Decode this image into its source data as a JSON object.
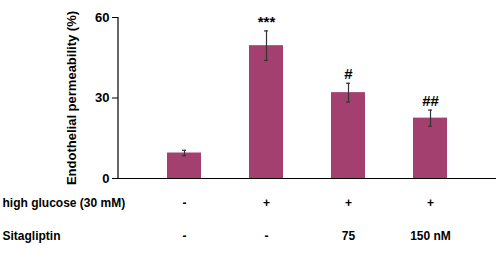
{
  "chart_data": {
    "type": "bar",
    "y_label": "Endothelial permeability (%)",
    "categories": [
      null,
      null,
      null,
      null
    ],
    "values": [
      9.5,
      49.5,
      32,
      22.5
    ],
    "errors": [
      1,
      5.5,
      3.5,
      3
    ],
    "significance": [
      null,
      "***",
      "#",
      "##"
    ],
    "treatments": [
      {
        "label": "high glucose (30 mM)",
        "values": [
          "-",
          "+",
          "+",
          "+"
        ]
      },
      {
        "label": "Sitagliptin",
        "values": [
          "-",
          "-",
          "75",
          "150 nM"
        ]
      }
    ],
    "color": "#a3406f",
    "ylim": [
      0,
      60
    ],
    "yticks": [
      0,
      30,
      60
    ],
    "grid": false,
    "tick_labels": "y"
  }
}
